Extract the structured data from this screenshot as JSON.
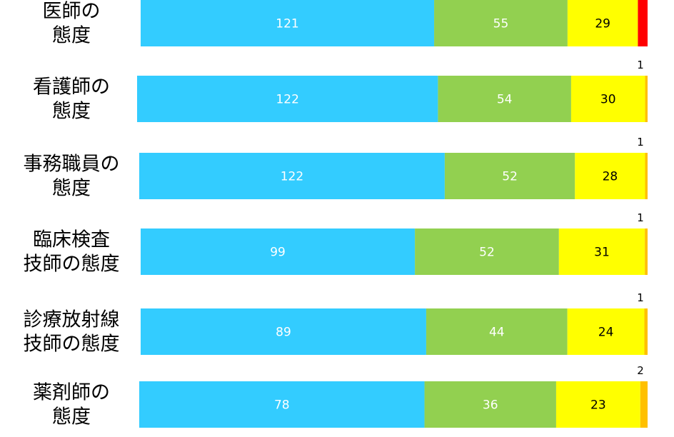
{
  "chart_data": {
    "type": "bar",
    "orientation": "horizontal",
    "stacked": true,
    "normalized": true,
    "title": "",
    "xlabel": "",
    "ylabel": "",
    "legend": "none",
    "grid": false,
    "categories": [
      "医師の\n態度",
      "看護師の\n態度",
      "事務職員の\n態度",
      "臨床検査\n技師の態度",
      "診療放射線\n技師の態度",
      "薬剤師の\n態度"
    ],
    "series": [
      {
        "color": "#33ccff",
        "values": [
          121,
          122,
          122,
          99,
          89,
          78
        ]
      },
      {
        "color": "#92d050",
        "values": [
          55,
          54,
          52,
          52,
          44,
          36
        ]
      },
      {
        "color": "#ffff00",
        "values": [
          29,
          30,
          28,
          31,
          24,
          23
        ]
      },
      {
        "color": "#ffc000",
        "values": [
          0,
          1,
          1,
          1,
          1,
          2
        ]
      },
      {
        "color": "#ff0000",
        "values": [
          4,
          0,
          0,
          0,
          0,
          0
        ]
      }
    ],
    "segment_label_colors": [
      "#ffffff",
      "#ffffff",
      "#000000"
    ],
    "outside_labels": [
      "",
      "1",
      "1",
      "1",
      "1",
      "2"
    ]
  }
}
